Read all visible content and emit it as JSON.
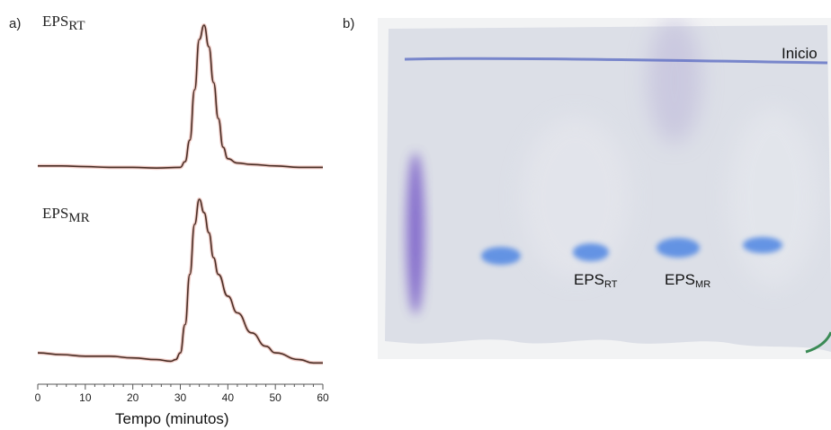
{
  "panels": {
    "a_label": "a)",
    "b_label": "b)"
  },
  "chart_data": {
    "type": "line",
    "xlabel": "Tempo (minutos)",
    "xlim": [
      0,
      60
    ],
    "x_ticks": [
      "0",
      "10",
      "20",
      "30",
      "40",
      "50",
      "60"
    ],
    "series": [
      {
        "name_main": "EPS",
        "name_sub": "RT",
        "x": [
          0,
          5,
          10,
          15,
          20,
          25,
          30,
          31,
          32,
          33,
          34,
          35,
          36,
          37,
          38,
          39,
          40,
          42,
          45,
          50,
          55,
          60
        ],
        "y": [
          0.02,
          0.02,
          0.015,
          0.01,
          0.01,
          0.005,
          0.01,
          0.05,
          0.2,
          0.55,
          0.9,
          1.0,
          0.85,
          0.6,
          0.35,
          0.15,
          0.07,
          0.04,
          0.03,
          0.02,
          0.01,
          0.01
        ]
      },
      {
        "name_main": "EPS",
        "name_sub": "MR",
        "x": [
          0,
          5,
          10,
          15,
          20,
          25,
          28,
          29,
          30,
          31,
          32,
          33,
          34,
          35,
          36,
          37,
          38,
          40,
          42,
          45,
          48,
          50,
          55,
          58,
          60
        ],
        "y": [
          0.08,
          0.07,
          0.06,
          0.06,
          0.05,
          0.04,
          0.03,
          0.04,
          0.08,
          0.25,
          0.55,
          0.85,
          1.0,
          0.92,
          0.8,
          0.65,
          0.55,
          0.42,
          0.32,
          0.2,
          0.12,
          0.08,
          0.04,
          0.02,
          0.02
        ]
      }
    ]
  },
  "gel": {
    "start_label": "Inicio",
    "lanes": [
      {
        "main": "EPS",
        "sub": "RT"
      },
      {
        "main": "EPS",
        "sub": "MR"
      }
    ],
    "colors": {
      "background": "#dcdfe7",
      "spot": "#4f86e3",
      "smear": "#6b4cc4",
      "top_line": "#5f6fc4"
    }
  }
}
